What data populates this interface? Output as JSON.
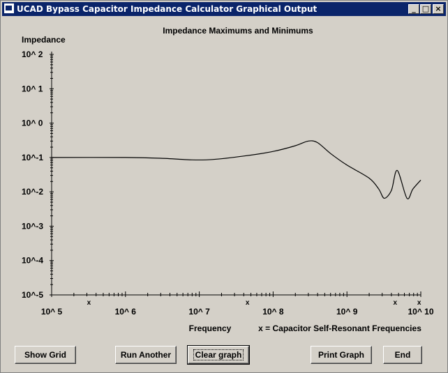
{
  "window": {
    "title": "UCAD Bypass Capacitor Impedance Calculator Graphical Output",
    "controls": {
      "minimize": "_",
      "maximize": "□",
      "close": "×"
    }
  },
  "chart_data": {
    "type": "line",
    "title": "Impedance Maximums and Minimums",
    "ylabel": "Impedance",
    "xlabel": "Frequency",
    "annotation": "x = Capacitor Self-Resonant Frequencies",
    "x_scale": "log",
    "y_scale": "log",
    "xlim": [
      100000,
      10000000000
    ],
    "ylim": [
      1e-05,
      100
    ],
    "x_tick_labels": [
      "10^ 5",
      "10^ 6",
      "10^ 7",
      "10^ 8",
      "10^ 9",
      "10^ 10"
    ],
    "y_tick_labels": [
      "10^ 2",
      "10^ 1",
      "10^ 0",
      "10^-1",
      "10^-2",
      "10^-3",
      "10^-4",
      "10^-5"
    ],
    "grid": false,
    "self_resonant_marker": "x",
    "self_resonant_frequencies": [
      320000,
      45000000,
      4500000000,
      9500000000
    ],
    "series": [
      {
        "x": [
          100000,
          1000000,
          3000000,
          8000000,
          15000000,
          40000000,
          100000000,
          200000000,
          300000000,
          400000000,
          600000000,
          1000000000,
          2000000000,
          2700000000,
          3200000000,
          4000000000,
          4800000000,
          6500000000,
          7800000000,
          10000000000
        ],
        "y": [
          0.1,
          0.1,
          0.095,
          0.085,
          0.087,
          0.11,
          0.15,
          0.22,
          0.3,
          0.27,
          0.13,
          0.06,
          0.025,
          0.012,
          0.0065,
          0.011,
          0.042,
          0.0065,
          0.012,
          0.022
        ]
      }
    ]
  },
  "buttons": {
    "show_grid": "Show Grid",
    "run_another": "Run Another",
    "clear_graph": "Clear graph",
    "print_graph": "Print Graph",
    "end": "End"
  }
}
